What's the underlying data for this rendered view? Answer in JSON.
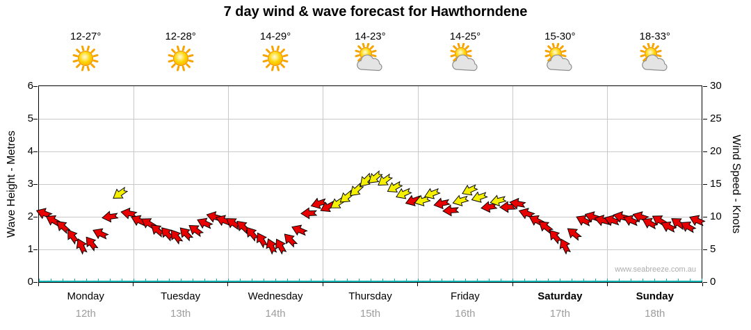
{
  "title": "7 day wind & wave forecast for Hawthorndene",
  "watermark": "www.seabreeze.com.au",
  "colors": {
    "arrow_red": "#e80000",
    "arrow_yellow": "#f5ef00",
    "arrow_outline": "#000000",
    "grid": "#c8c8c8",
    "axis": "#000000",
    "wave_line": "#00b4b4",
    "date_text": "#9d9d9d",
    "watermark_text": "#adadad"
  },
  "chart_data": {
    "type": "line",
    "title": "7 day wind & wave forecast for Hawthorndene",
    "left_axis": {
      "label": "Wave Height - Metres",
      "min": 0,
      "max": 6,
      "ticks": [
        0,
        1,
        2,
        3,
        4,
        5,
        6
      ]
    },
    "right_axis": {
      "label": "Wind Speed - Knots",
      "min": 0,
      "max": 30,
      "ticks": [
        0,
        5,
        10,
        15,
        20,
        25,
        30
      ]
    },
    "grid": "on",
    "days": [
      {
        "name": "Monday",
        "date": "12th",
        "temps": "12-27°",
        "icon": "sunny",
        "weekend": false
      },
      {
        "name": "Tuesday",
        "date": "13th",
        "temps": "12-28°",
        "icon": "sunny",
        "weekend": false
      },
      {
        "name": "Wednesday",
        "date": "14th",
        "temps": "14-29°",
        "icon": "sunny",
        "weekend": false
      },
      {
        "name": "Thursday",
        "date": "15th",
        "temps": "14-23°",
        "icon": "partly-cloudy",
        "weekend": false
      },
      {
        "name": "Friday",
        "date": "16th",
        "temps": "14-25°",
        "icon": "partly-cloudy",
        "weekend": false
      },
      {
        "name": "Saturday",
        "date": "17th",
        "temps": "15-30°",
        "icon": "partly-cloudy",
        "weekend": true
      },
      {
        "name": "Sunday",
        "date": "18th",
        "temps": "18-33°",
        "icon": "partly-cloudy",
        "weekend": true
      }
    ],
    "wave_series": {
      "name": "Wave Height",
      "units": "metres",
      "constant_value": 0,
      "color": "#00b4b4"
    },
    "wind_series": {
      "name": "Wind Speed",
      "units": "knots",
      "arrow_colors": {
        "r": "#e80000",
        "y": "#f5ef00"
      },
      "point_format": [
        "day_offset_from_monday",
        "wind_speed_knots",
        "arrow_direction_deg",
        "color_key(r=red,y=yellow)"
      ],
      "points": [
        [
          0.05,
          10.5,
          200,
          "r"
        ],
        [
          0.15,
          9.5,
          210,
          "r"
        ],
        [
          0.25,
          8.5,
          222,
          "r"
        ],
        [
          0.35,
          7,
          235,
          "r"
        ],
        [
          0.45,
          5.5,
          245,
          "r"
        ],
        [
          0.55,
          6,
          232,
          "r"
        ],
        [
          0.65,
          7.5,
          205,
          "r"
        ],
        [
          0.75,
          10,
          172,
          "r"
        ],
        [
          0.85,
          13.5,
          145,
          "y"
        ],
        [
          0.95,
          10.5,
          190,
          "r"
        ],
        [
          1.05,
          9.5,
          205,
          "r"
        ],
        [
          1.15,
          9,
          212,
          "r"
        ],
        [
          1.25,
          8,
          221,
          "r"
        ],
        [
          1.35,
          7.5,
          228,
          "r"
        ],
        [
          1.45,
          7,
          233,
          "r"
        ],
        [
          1.55,
          7.5,
          226,
          "r"
        ],
        [
          1.65,
          8,
          216,
          "r"
        ],
        [
          1.75,
          9,
          205,
          "r"
        ],
        [
          1.85,
          10,
          196,
          "r"
        ],
        [
          1.95,
          9.5,
          201,
          "r"
        ],
        [
          2.05,
          9,
          215,
          "r"
        ],
        [
          2.15,
          8.5,
          223,
          "r"
        ],
        [
          2.25,
          7.5,
          231,
          "r"
        ],
        [
          2.35,
          6.5,
          240,
          "r"
        ],
        [
          2.45,
          5.5,
          247,
          "r"
        ],
        [
          2.55,
          5.5,
          241,
          "r"
        ],
        [
          2.65,
          6.5,
          226,
          "r"
        ],
        [
          2.75,
          8,
          203,
          "r"
        ],
        [
          2.85,
          10.5,
          178,
          "r"
        ],
        [
          2.95,
          12,
          162,
          "r"
        ],
        [
          3.05,
          11.5,
          152,
          "r"
        ],
        [
          3.15,
          12,
          146,
          "y"
        ],
        [
          3.25,
          13,
          141,
          "y"
        ],
        [
          3.35,
          14,
          137,
          "y"
        ],
        [
          3.45,
          15.5,
          134,
          "y"
        ],
        [
          3.55,
          16,
          139,
          "y"
        ],
        [
          3.65,
          15.5,
          144,
          "y"
        ],
        [
          3.75,
          14.5,
          150,
          "y"
        ],
        [
          3.85,
          13.5,
          156,
          "y"
        ],
        [
          3.95,
          12.5,
          161,
          "r"
        ],
        [
          4.05,
          12.5,
          163,
          "y"
        ],
        [
          4.15,
          13.5,
          158,
          "y"
        ],
        [
          4.25,
          12,
          168,
          "r"
        ],
        [
          4.35,
          11,
          176,
          "r"
        ],
        [
          4.45,
          12.5,
          163,
          "y"
        ],
        [
          4.55,
          14,
          155,
          "y"
        ],
        [
          4.65,
          13,
          161,
          "y"
        ],
        [
          4.75,
          11.5,
          172,
          "r"
        ],
        [
          4.85,
          12.5,
          166,
          "y"
        ],
        [
          4.95,
          11.5,
          178,
          "r"
        ],
        [
          5.05,
          12,
          190,
          "r"
        ],
        [
          5.15,
          10.5,
          199,
          "r"
        ],
        [
          5.25,
          9.5,
          208,
          "r"
        ],
        [
          5.35,
          8.5,
          218,
          "r"
        ],
        [
          5.45,
          7,
          230,
          "r"
        ],
        [
          5.55,
          5.5,
          243,
          "r"
        ],
        [
          5.65,
          7.5,
          219,
          "r"
        ],
        [
          5.75,
          9.5,
          206,
          "r"
        ],
        [
          5.85,
          10,
          198,
          "r"
        ],
        [
          5.95,
          9.5,
          195,
          "r"
        ],
        [
          6.05,
          9.5,
          198,
          "r"
        ],
        [
          6.15,
          10,
          194,
          "r"
        ],
        [
          6.25,
          9.5,
          203,
          "r"
        ],
        [
          6.35,
          10,
          198,
          "r"
        ],
        [
          6.45,
          9,
          208,
          "r"
        ],
        [
          6.55,
          9.5,
          212,
          "r"
        ],
        [
          6.65,
          8.5,
          206,
          "r"
        ],
        [
          6.75,
          9,
          215,
          "r"
        ],
        [
          6.85,
          8.5,
          210,
          "r"
        ],
        [
          6.95,
          9.5,
          204,
          "r"
        ]
      ]
    }
  }
}
